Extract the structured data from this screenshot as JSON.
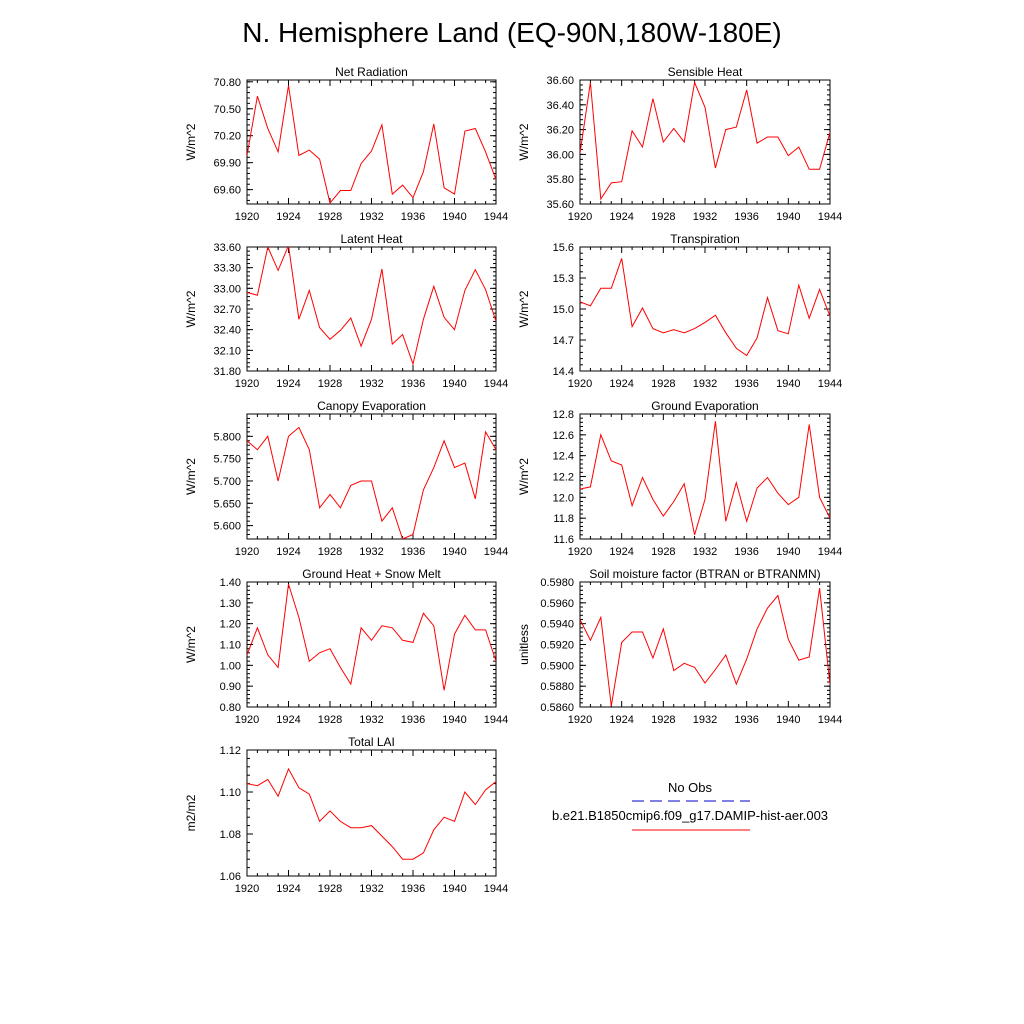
{
  "title": "N. Hemisphere Land (EQ-90N,180W-180E)",
  "legend": {
    "entries": [
      {
        "label": "No Obs",
        "color": "#0000cc",
        "dash": true
      },
      {
        "label": "b.e21.B1850cmip6.f09_g17.DAMIP-hist-aer.003",
        "color": "#ff0000",
        "dash": false
      }
    ]
  },
  "colors": {
    "series": "#ff0000",
    "obs": "#0000cc"
  },
  "chart_data": [
    {
      "type": "line",
      "title": "Net Radiation",
      "ylabel": "W/m^2",
      "x": [
        1920,
        1921,
        1922,
        1923,
        1924,
        1925,
        1926,
        1927,
        1928,
        1929,
        1930,
        1931,
        1932,
        1933,
        1934,
        1935,
        1936,
        1937,
        1938,
        1939,
        1940,
        1941,
        1942,
        1943,
        1944
      ],
      "xticks": [
        "1920",
        "1924",
        "1928",
        "1932",
        "1936",
        "1940",
        "1944"
      ],
      "ylim": [
        69.44,
        70.82
      ],
      "yticks": [
        "69.60",
        "69.90",
        "70.20",
        "70.50",
        "70.80"
      ],
      "series": [
        {
          "values": [
            69.98,
            70.64,
            70.28,
            70.02,
            70.76,
            69.98,
            70.04,
            69.94,
            69.45,
            69.59,
            69.59,
            69.89,
            70.03,
            70.32,
            69.55,
            69.65,
            69.51,
            69.8,
            70.33,
            69.62,
            69.55,
            70.25,
            70.28,
            70.02,
            69.71
          ]
        }
      ]
    },
    {
      "type": "line",
      "title": "Sensible Heat",
      "ylabel": "W/m^2",
      "x": [
        1920,
        1921,
        1922,
        1923,
        1924,
        1925,
        1926,
        1927,
        1928,
        1929,
        1930,
        1931,
        1932,
        1933,
        1934,
        1935,
        1936,
        1937,
        1938,
        1939,
        1940,
        1941,
        1942,
        1943,
        1944
      ],
      "xticks": [
        "1920",
        "1924",
        "1928",
        "1932",
        "1936",
        "1940",
        "1944"
      ],
      "ylim": [
        35.6,
        36.6
      ],
      "yticks": [
        "35.60",
        "35.80",
        "36.00",
        "36.20",
        "36.40",
        "36.60"
      ],
      "series": [
        {
          "values": [
            36.01,
            36.58,
            35.64,
            35.77,
            35.78,
            36.19,
            36.06,
            36.45,
            36.1,
            36.21,
            36.1,
            36.58,
            36.38,
            35.89,
            36.2,
            36.22,
            36.52,
            36.09,
            36.14,
            36.14,
            35.99,
            36.06,
            35.88,
            35.88,
            36.18
          ]
        }
      ]
    },
    {
      "type": "line",
      "title": "Latent Heat",
      "ylabel": "W/m^2",
      "x": [
        1920,
        1921,
        1922,
        1923,
        1924,
        1925,
        1926,
        1927,
        1928,
        1929,
        1930,
        1931,
        1932,
        1933,
        1934,
        1935,
        1936,
        1937,
        1938,
        1939,
        1940,
        1941,
        1942,
        1943,
        1944
      ],
      "xticks": [
        "1920",
        "1924",
        "1928",
        "1932",
        "1936",
        "1940",
        "1944"
      ],
      "ylim": [
        31.8,
        33.6
      ],
      "yticks": [
        "31.80",
        "32.10",
        "32.40",
        "32.70",
        "33.00",
        "33.30",
        "33.60"
      ],
      "series": [
        {
          "values": [
            32.94,
            32.9,
            33.6,
            33.26,
            33.62,
            32.55,
            32.97,
            32.43,
            32.26,
            32.39,
            32.57,
            32.16,
            32.55,
            33.28,
            32.19,
            32.33,
            31.9,
            32.55,
            33.03,
            32.58,
            32.4,
            32.97,
            33.27,
            32.98,
            32.52
          ]
        }
      ]
    },
    {
      "type": "line",
      "title": "Transpiration",
      "ylabel": "W/m^2",
      "x": [
        1920,
        1921,
        1922,
        1923,
        1924,
        1925,
        1926,
        1927,
        1928,
        1929,
        1930,
        1931,
        1932,
        1933,
        1934,
        1935,
        1936,
        1937,
        1938,
        1939,
        1940,
        1941,
        1942,
        1943,
        1944
      ],
      "xticks": [
        "1920",
        "1924",
        "1928",
        "1932",
        "1936",
        "1940",
        "1944"
      ],
      "ylim": [
        14.4,
        15.6
      ],
      "yticks": [
        "14.4",
        "14.7",
        "15.0",
        "15.3",
        "15.6"
      ],
      "series": [
        {
          "values": [
            15.07,
            15.03,
            15.2,
            15.2,
            15.49,
            14.83,
            15.01,
            14.81,
            14.77,
            14.8,
            14.77,
            14.81,
            14.87,
            14.94,
            14.77,
            14.62,
            14.55,
            14.72,
            15.11,
            14.79,
            14.76,
            15.23,
            14.91,
            15.19,
            14.93
          ]
        }
      ]
    },
    {
      "type": "line",
      "title": "Canopy Evaporation",
      "ylabel": "W/m^2",
      "x": [
        1920,
        1921,
        1922,
        1923,
        1924,
        1925,
        1926,
        1927,
        1928,
        1929,
        1930,
        1931,
        1932,
        1933,
        1934,
        1935,
        1936,
        1937,
        1938,
        1939,
        1940,
        1941,
        1942,
        1943,
        1944
      ],
      "xticks": [
        "1920",
        "1924",
        "1928",
        "1932",
        "1936",
        "1940",
        "1944"
      ],
      "ylim": [
        5.57,
        5.85
      ],
      "yticks": [
        "5.600",
        "5.650",
        "5.700",
        "5.750",
        "5.800"
      ],
      "series": [
        {
          "values": [
            5.79,
            5.77,
            5.8,
            5.7,
            5.8,
            5.82,
            5.77,
            5.64,
            5.67,
            5.64,
            5.69,
            5.7,
            5.7,
            5.61,
            5.64,
            5.57,
            5.58,
            5.68,
            5.73,
            5.79,
            5.73,
            5.74,
            5.66,
            5.81,
            5.77
          ]
        }
      ]
    },
    {
      "type": "line",
      "title": "Ground Evaporation",
      "ylabel": "W/m^2",
      "x": [
        1920,
        1921,
        1922,
        1923,
        1924,
        1925,
        1926,
        1927,
        1928,
        1929,
        1930,
        1931,
        1932,
        1933,
        1934,
        1935,
        1936,
        1937,
        1938,
        1939,
        1940,
        1941,
        1942,
        1943,
        1944
      ],
      "xticks": [
        "1920",
        "1924",
        "1928",
        "1932",
        "1936",
        "1940",
        "1944"
      ],
      "ylim": [
        11.6,
        12.8
      ],
      "yticks": [
        "11.6",
        "11.8",
        "12.0",
        "12.2",
        "12.4",
        "12.6",
        "12.8"
      ],
      "series": [
        {
          "values": [
            12.08,
            12.1,
            12.6,
            12.35,
            12.31,
            11.92,
            12.19,
            11.98,
            11.82,
            11.96,
            12.13,
            11.64,
            11.98,
            12.73,
            11.77,
            12.14,
            11.77,
            12.09,
            12.19,
            12.04,
            11.93,
            12.0,
            12.7,
            12.0,
            11.8
          ]
        }
      ]
    },
    {
      "type": "line",
      "title": "Ground Heat + Snow Melt",
      "ylabel": "W/m^2",
      "x": [
        1920,
        1921,
        1922,
        1923,
        1924,
        1925,
        1926,
        1927,
        1928,
        1929,
        1930,
        1931,
        1932,
        1933,
        1934,
        1935,
        1936,
        1937,
        1938,
        1939,
        1940,
        1941,
        1942,
        1943,
        1944
      ],
      "xticks": [
        "1920",
        "1924",
        "1928",
        "1932",
        "1936",
        "1940",
        "1944"
      ],
      "ylim": [
        0.8,
        1.4
      ],
      "yticks": [
        "0.80",
        "0.90",
        "1.00",
        "1.10",
        "1.20",
        "1.30",
        "1.40"
      ],
      "series": [
        {
          "values": [
            1.05,
            1.18,
            1.05,
            0.99,
            1.39,
            1.23,
            1.02,
            1.06,
            1.08,
            0.99,
            0.91,
            1.18,
            1.12,
            1.19,
            1.18,
            1.12,
            1.11,
            1.25,
            1.19,
            0.88,
            1.15,
            1.24,
            1.17,
            1.17,
            1.02
          ]
        }
      ]
    },
    {
      "type": "line",
      "title": "Soil moisture factor (BTRAN or BTRANMN)",
      "ylabel": "unitless",
      "x": [
        1920,
        1921,
        1922,
        1923,
        1924,
        1925,
        1926,
        1927,
        1928,
        1929,
        1930,
        1931,
        1932,
        1933,
        1934,
        1935,
        1936,
        1937,
        1938,
        1939,
        1940,
        1941,
        1942,
        1943,
        1944
      ],
      "xticks": [
        "1920",
        "1924",
        "1928",
        "1932",
        "1936",
        "1940",
        "1944"
      ],
      "ylim": [
        0.586,
        0.598
      ],
      "yticks": [
        "0.5860",
        "0.5880",
        "0.5900",
        "0.5920",
        "0.5940",
        "0.5960",
        "0.5980"
      ],
      "series": [
        {
          "values": [
            0.5944,
            0.5924,
            0.5946,
            0.5861,
            0.5922,
            0.5932,
            0.5932,
            0.5907,
            0.5935,
            0.5895,
            0.5902,
            0.5898,
            0.5883,
            0.5896,
            0.591,
            0.5882,
            0.5906,
            0.5935,
            0.5955,
            0.5967,
            0.5925,
            0.5905,
            0.5908,
            0.5974,
            0.5881
          ]
        }
      ]
    },
    {
      "type": "line",
      "title": "Total LAI",
      "ylabel": "m2/m2",
      "x": [
        1920,
        1921,
        1922,
        1923,
        1924,
        1925,
        1926,
        1927,
        1928,
        1929,
        1930,
        1931,
        1932,
        1933,
        1934,
        1935,
        1936,
        1937,
        1938,
        1939,
        1940,
        1941,
        1942,
        1943,
        1944
      ],
      "xticks": [
        "1920",
        "1924",
        "1928",
        "1932",
        "1936",
        "1940",
        "1944"
      ],
      "ylim": [
        1.06,
        1.12
      ],
      "yticks": [
        "1.06",
        "1.08",
        "1.10",
        "1.12"
      ],
      "series": [
        {
          "values": [
            1.104,
            1.103,
            1.106,
            1.098,
            1.111,
            1.102,
            1.099,
            1.086,
            1.091,
            1.086,
            1.083,
            1.083,
            1.084,
            1.079,
            1.074,
            1.068,
            1.068,
            1.071,
            1.082,
            1.088,
            1.086,
            1.1,
            1.094,
            1.101,
            1.105
          ]
        }
      ]
    }
  ]
}
